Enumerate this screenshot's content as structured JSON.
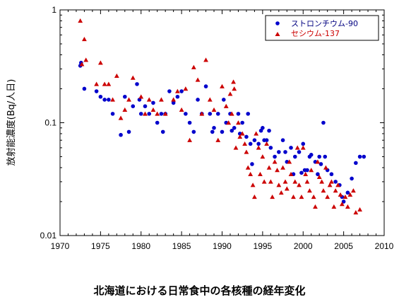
{
  "chart_data": {
    "type": "scatter",
    "title": "北海道における日常食中の各核種の経年変化",
    "xlabel": "",
    "ylabel": "放射能濃度(Bq/人日)",
    "xlim": [
      1970,
      2010
    ],
    "ylim": [
      0.01,
      1
    ],
    "yscale": "log",
    "x_ticks": [
      "1970",
      "1975",
      "1980",
      "1985",
      "1990",
      "1995",
      "2000",
      "2005",
      "2010"
    ],
    "y_ticks": [
      "0.01",
      "0.1",
      "1"
    ],
    "grid": false,
    "legend_position": "top-right",
    "series": [
      {
        "name": "ストロンチウム-90",
        "color": "#0000cc",
        "marker": "circle",
        "points": [
          [
            1972.5,
            0.32
          ],
          [
            1972.6,
            0.34
          ],
          [
            1973.0,
            0.2
          ],
          [
            1974.5,
            0.19
          ],
          [
            1975.0,
            0.17
          ],
          [
            1975.5,
            0.16
          ],
          [
            1976.0,
            0.16
          ],
          [
            1976.5,
            0.12
          ],
          [
            1977.5,
            0.078
          ],
          [
            1978.0,
            0.17
          ],
          [
            1978.5,
            0.083
          ],
          [
            1979.0,
            0.14
          ],
          [
            1979.5,
            0.22
          ],
          [
            1979.8,
            0.16
          ],
          [
            1980.0,
            0.12
          ],
          [
            1980.5,
            0.14
          ],
          [
            1981.0,
            0.12
          ],
          [
            1981.5,
            0.15
          ],
          [
            1982.0,
            0.1
          ],
          [
            1982.5,
            0.12
          ],
          [
            1982.7,
            0.083
          ],
          [
            1983.0,
            0.12
          ],
          [
            1983.5,
            0.19
          ],
          [
            1984.0,
            0.15
          ],
          [
            1984.5,
            0.17
          ],
          [
            1985.0,
            0.19
          ],
          [
            1985.5,
            0.12
          ],
          [
            1986.0,
            0.1
          ],
          [
            1986.5,
            0.083
          ],
          [
            1987.0,
            0.16
          ],
          [
            1987.5,
            0.12
          ],
          [
            1988.0,
            0.21
          ],
          [
            1988.5,
            0.12
          ],
          [
            1988.8,
            0.083
          ],
          [
            1989.0,
            0.09
          ],
          [
            1989.5,
            0.12
          ],
          [
            1990.0,
            0.083
          ],
          [
            1990.2,
            0.16
          ],
          [
            1990.5,
            0.1
          ],
          [
            1991.0,
            0.12
          ],
          [
            1991.2,
            0.085
          ],
          [
            1991.5,
            0.09
          ],
          [
            1992.0,
            0.12
          ],
          [
            1992.2,
            0.08
          ],
          [
            1992.5,
            0.1
          ],
          [
            1993.0,
            0.075
          ],
          [
            1993.2,
            0.12
          ],
          [
            1993.5,
            0.065
          ],
          [
            1993.7,
            0.043
          ],
          [
            1994.0,
            0.07
          ],
          [
            1994.5,
            0.065
          ],
          [
            1994.8,
            0.085
          ],
          [
            1995.0,
            0.09
          ],
          [
            1995.2,
            0.07
          ],
          [
            1995.5,
            0.07
          ],
          [
            1995.8,
            0.085
          ],
          [
            1996.0,
            0.06
          ],
          [
            1996.5,
            0.05
          ],
          [
            1997.0,
            0.055
          ],
          [
            1997.5,
            0.07
          ],
          [
            1997.8,
            0.055
          ],
          [
            1998.0,
            0.045
          ],
          [
            1998.5,
            0.06
          ],
          [
            1998.8,
            0.035
          ],
          [
            1999.0,
            0.05
          ],
          [
            1999.5,
            0.055
          ],
          [
            1999.8,
            0.036
          ],
          [
            2000.0,
            0.065
          ],
          [
            2000.2,
            0.038
          ],
          [
            2000.5,
            0.038
          ],
          [
            2000.8,
            0.05
          ],
          [
            2001.0,
            0.052
          ],
          [
            2001.5,
            0.045
          ],
          [
            2001.8,
            0.035
          ],
          [
            2002.0,
            0.05
          ],
          [
            2002.2,
            0.043
          ],
          [
            2002.5,
            0.1
          ],
          [
            2002.7,
            0.05
          ],
          [
            2003.0,
            0.038
          ],
          [
            2003.5,
            0.035
          ],
          [
            2004.0,
            0.03
          ],
          [
            2004.5,
            0.028
          ],
          [
            2004.8,
            0.022
          ],
          [
            2005.0,
            0.02
          ],
          [
            2005.5,
            0.024
          ],
          [
            2006.0,
            0.032
          ],
          [
            2006.5,
            0.044
          ],
          [
            2007.0,
            0.05
          ],
          [
            2007.5,
            0.05
          ]
        ]
      },
      {
        "name": "セシウム-137",
        "color": "#cc0000",
        "marker": "triangle",
        "points": [
          [
            1972.5,
            0.8
          ],
          [
            1972.7,
            0.33
          ],
          [
            1973.0,
            0.55
          ],
          [
            1973.2,
            0.36
          ],
          [
            1975.0,
            0.34
          ],
          [
            1974.5,
            0.22
          ],
          [
            1975.5,
            0.22
          ],
          [
            1976.0,
            0.22
          ],
          [
            1976.5,
            0.16
          ],
          [
            1977.0,
            0.26
          ],
          [
            1977.5,
            0.11
          ],
          [
            1978.0,
            0.13
          ],
          [
            1978.5,
            0.16
          ],
          [
            1979.0,
            0.25
          ],
          [
            1980.0,
            0.17
          ],
          [
            1980.5,
            0.12
          ],
          [
            1981.0,
            0.16
          ],
          [
            1981.5,
            0.13
          ],
          [
            1982.0,
            0.12
          ],
          [
            1982.5,
            0.16
          ],
          [
            1983.0,
            0.12
          ],
          [
            1984.0,
            0.16
          ],
          [
            1984.5,
            0.19
          ],
          [
            1985.0,
            0.13
          ],
          [
            1985.5,
            0.2
          ],
          [
            1986.0,
            0.07
          ],
          [
            1986.5,
            0.31
          ],
          [
            1987.0,
            0.24
          ],
          [
            1987.5,
            0.12
          ],
          [
            1988.0,
            0.36
          ],
          [
            1988.5,
            0.16
          ],
          [
            1989.0,
            0.13
          ],
          [
            1989.5,
            0.07
          ],
          [
            1990.0,
            0.21
          ],
          [
            1990.5,
            0.14
          ],
          [
            1990.8,
            0.1
          ],
          [
            1991.0,
            0.18
          ],
          [
            1991.2,
            0.12
          ],
          [
            1991.4,
            0.23
          ],
          [
            1991.5,
            0.2
          ],
          [
            1991.7,
            0.06
          ],
          [
            1992.0,
            0.1
          ],
          [
            1992.2,
            0.075
          ],
          [
            1992.5,
            0.08
          ],
          [
            1992.8,
            0.065
          ],
          [
            1993.0,
            0.055
          ],
          [
            1993.2,
            0.04
          ],
          [
            1993.5,
            0.035
          ],
          [
            1993.8,
            0.028
          ],
          [
            1994.0,
            0.022
          ],
          [
            1994.2,
            0.08
          ],
          [
            1994.5,
            0.06
          ],
          [
            1994.7,
            0.035
          ],
          [
            1995.0,
            0.05
          ],
          [
            1995.2,
            0.03
          ],
          [
            1995.5,
            0.065
          ],
          [
            1995.8,
            0.04
          ],
          [
            1996.0,
            0.03
          ],
          [
            1996.2,
            0.022
          ],
          [
            1996.5,
            0.045
          ],
          [
            1996.8,
            0.038
          ],
          [
            1997.0,
            0.028
          ],
          [
            1997.3,
            0.024
          ],
          [
            1997.5,
            0.04
          ],
          [
            1997.8,
            0.03
          ],
          [
            1998.0,
            0.026
          ],
          [
            1998.3,
            0.045
          ],
          [
            1998.5,
            0.035
          ],
          [
            1998.8,
            0.022
          ],
          [
            1999.0,
            0.03
          ],
          [
            1999.3,
            0.06
          ],
          [
            1999.5,
            0.028
          ],
          [
            1999.8,
            0.022
          ],
          [
            2000.0,
            0.06
          ],
          [
            2000.3,
            0.035
          ],
          [
            2000.5,
            0.03
          ],
          [
            2000.8,
            0.025
          ],
          [
            2001.0,
            0.038
          ],
          [
            2001.3,
            0.022
          ],
          [
            2001.5,
            0.018
          ],
          [
            2001.8,
            0.045
          ],
          [
            2002.0,
            0.033
          ],
          [
            2002.3,
            0.03
          ],
          [
            2002.5,
            0.025
          ],
          [
            2002.8,
            0.04
          ],
          [
            2003.0,
            0.022
          ],
          [
            2003.3,
            0.028
          ],
          [
            2003.5,
            0.03
          ],
          [
            2003.8,
            0.018
          ],
          [
            2004.0,
            0.025
          ],
          [
            2004.3,
            0.028
          ],
          [
            2004.6,
            0.023
          ],
          [
            2004.8,
            0.019
          ],
          [
            2005.2,
            0.022
          ],
          [
            2005.5,
            0.018
          ],
          [
            2005.8,
            0.023
          ],
          [
            2006.2,
            0.025
          ],
          [
            2006.5,
            0.016
          ],
          [
            2007.0,
            0.017
          ]
        ]
      }
    ]
  }
}
